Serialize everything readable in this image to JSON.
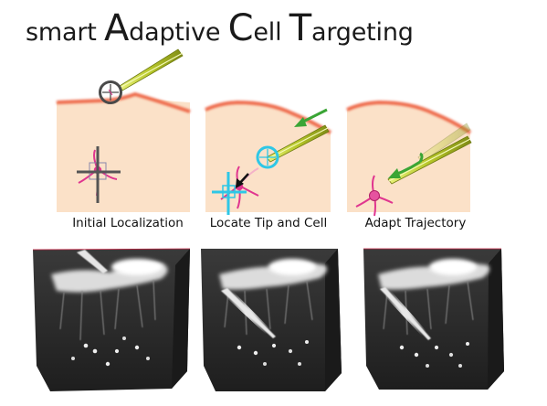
{
  "title": {
    "prefix": "smart ",
    "word1_initial": "A",
    "word1_rest": "daptive ",
    "word2_initial": "C",
    "word2_rest": "ell ",
    "word3_initial": "T",
    "word3_rest": "argeting"
  },
  "steps": [
    {
      "label": "Initial Localization"
    },
    {
      "label": "Locate Tip and Cell"
    },
    {
      "label": "Adapt Trajectory"
    }
  ],
  "colors": {
    "tissue": "#fbe1c8",
    "surface": "#ee6a4c",
    "pipette": "#b6c629",
    "target_ring": "#4a4a4a",
    "detect_ring": "#2ec7e6",
    "cell": "#e0358f",
    "arrow_green": "#3aa535",
    "crosshair": "#555555"
  },
  "icons": [
    "target-ring-icon",
    "crosshair-icon",
    "arrow-icon",
    "pipette-icon",
    "cell-icon"
  ]
}
